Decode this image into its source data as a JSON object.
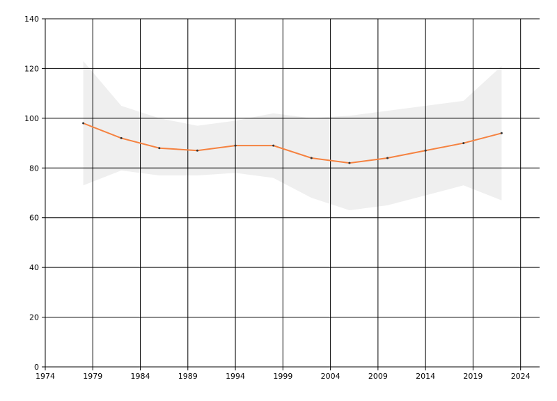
{
  "chart_data": {
    "type": "line",
    "x": [
      1978,
      1982,
      1986,
      1990,
      1994,
      1998,
      2002,
      2006,
      2010,
      2014,
      2018,
      2022
    ],
    "series": [
      {
        "color": "#f58240",
        "values": [
          98,
          92,
          88,
          87,
          89,
          89,
          84,
          82,
          84,
          87,
          90,
          94
        ],
        "upper": [
          123,
          105,
          100,
          97,
          99,
          102,
          100,
          101,
          103,
          105,
          107,
          121
        ],
        "lower": [
          73,
          79,
          77,
          77,
          78,
          76,
          68,
          63,
          65,
          69,
          73,
          67
        ],
        "band_color": "#efefef"
      }
    ],
    "xlim": [
      1974,
      2026
    ],
    "xticks": [
      1974,
      1979,
      1984,
      1989,
      1994,
      1999,
      2004,
      2009,
      2014,
      2019,
      2024
    ],
    "ylim": [
      0,
      140
    ],
    "yticks": [
      0,
      20,
      40,
      60,
      80,
      100,
      120,
      140
    ],
    "grid": true
  }
}
